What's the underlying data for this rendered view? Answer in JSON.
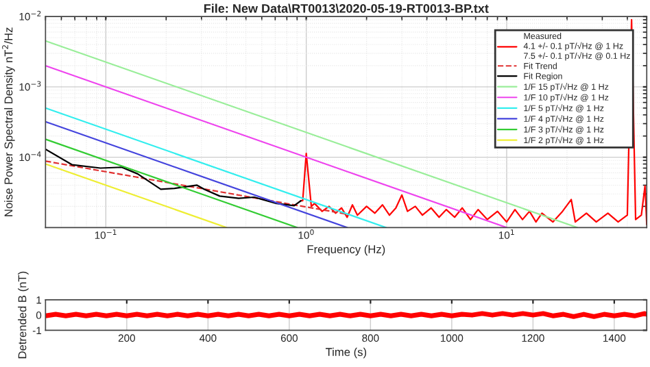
{
  "chart_data": [
    {
      "type": "line",
      "title": "File: New Data\\RT0013\\2020-05-19-RT0013-BP.txt",
      "xlabel": "Frequency (Hz)",
      "ylabel": "Noise Power Spectral Density nT$^{2}$/Hz",
      "log": "xy",
      "grid": true,
      "legend": "top right",
      "xlim": [
        0.05,
        50
      ],
      "ylim": [
        1e-05,
        0.01
      ],
      "xticks": [
        {
          "value": 0.1,
          "label": "10$^{−1}$"
        },
        {
          "value": 1,
          "label": "10$^{0}$"
        },
        {
          "value": 10,
          "label": "10$^{1}$"
        }
      ],
      "yticks": [
        {
          "value": 0.0001,
          "label": "10$^{−4}$"
        },
        {
          "value": 0.001,
          "label": "10$^{−3}$"
        },
        {
          "value": 0.01,
          "label": "10$^{−2}$"
        }
      ],
      "series": [
        {
          "name": "Measured\n4.1 +/- 0.1 pT/√Hz @ 1 Hz\n7.5 +/- 0.1 pT/√Hz @ 0.1 Hz",
          "color": "#ff0000",
          "x": [
            0.94,
            0.96,
            1.0,
            1.06,
            1.1,
            1.2,
            1.3,
            1.4,
            1.5,
            1.6,
            1.7,
            1.8,
            2.0,
            2.2,
            2.4,
            2.6,
            2.8,
            3.0,
            3.2,
            3.5,
            3.8,
            4.2,
            4.6,
            5.0,
            5.5,
            6.0,
            6.6,
            7.2,
            8.0,
            9.0,
            10,
            11,
            12,
            13,
            14,
            15,
            17,
            19,
            21,
            22,
            25,
            28,
            32,
            36,
            40,
            42,
            44,
            47,
            49,
            50
          ],
          "values": [
            2.4e-05,
            2.4e-05,
            0.000113,
            2e-05,
            2.2e-05,
            1.7e-05,
            2e-05,
            1.6e-05,
            1.9e-05,
            1.4e-05,
            2.1e-05,
            1.5e-05,
            2e-05,
            1.6e-05,
            2.1e-05,
            1.5e-05,
            1.9e-05,
            2.9e-05,
            1.7e-05,
            2e-05,
            1.5e-05,
            1.9e-05,
            1.4e-05,
            1.8e-05,
            1.4e-05,
            1.9e-05,
            1.3e-05,
            1.8e-05,
            1.3e-05,
            1.7e-05,
            1.2e-05,
            1.8e-05,
            1.3e-05,
            1.7e-05,
            1.2e-05,
            1.6e-05,
            1.2e-05,
            1.7e-05,
            2.5e-05,
            1.2e-05,
            1.6e-05,
            1.2e-05,
            1.6e-05,
            1.2e-05,
            1.5e-05,
            0.009,
            1.3e-05,
            1.5e-05,
            3.9e-05,
            1.1e-05
          ]
        },
        {
          "name": "Fit Trend",
          "color": "#e03030",
          "line_style": "dashed",
          "x": [
            0.05,
            1.6
          ],
          "values": [
            8.8e-05,
            1.55e-05
          ]
        },
        {
          "name": "Fit Region",
          "color": "#000000",
          "x": [
            0.05,
            0.068,
            0.094,
            0.12,
            0.144,
            0.188,
            0.22,
            0.285,
            0.31,
            0.37,
            0.46,
            0.55,
            0.71,
            0.87,
            0.94
          ],
          "values": [
            0.00013,
            7.8e-05,
            7e-05,
            7.2e-05,
            5.8e-05,
            3.5e-05,
            3.6e-05,
            4e-05,
            3.5e-05,
            2.8e-05,
            2.6e-05,
            2.7e-05,
            2.2e-05,
            2.05e-05,
            2.4e-05
          ]
        },
        {
          "name": "1/F 15 pT/√Hz @ 1 Hz",
          "color": "#99ee99",
          "x": [
            0.05,
            22.5
          ],
          "values": [
            0.0045,
            1e-05
          ]
        },
        {
          "name": "1/F 10 pT/√Hz @ 1 Hz",
          "color": "#ee44ee",
          "x": [
            0.05,
            10
          ],
          "values": [
            0.002,
            1e-05
          ]
        },
        {
          "name": "1/F 5 pT/√Hz @ 1 Hz",
          "color": "#33eeee",
          "x": [
            0.05,
            2.5
          ],
          "values": [
            0.0005,
            1e-05
          ]
        },
        {
          "name": "1/F 4 pT/√Hz @ 1 Hz",
          "color": "#4444dd",
          "x": [
            0.05,
            1.6
          ],
          "values": [
            0.00032,
            1e-05
          ]
        },
        {
          "name": "1/F 3 pT/√Hz @ 1 Hz",
          "color": "#33cc33",
          "x": [
            0.05,
            0.9
          ],
          "values": [
            0.00018,
            1e-05
          ]
        },
        {
          "name": "1/F 2 pT/√Hz @ 1 Hz",
          "color": "#eeee33",
          "x": [
            0.05,
            0.4
          ],
          "values": [
            8e-05,
            1e-05
          ]
        }
      ]
    },
    {
      "type": "line",
      "xlabel": "Time (s)",
      "ylabel": "Detrended B (nT)",
      "grid": "x",
      "xlim": [
        0,
        1480
      ],
      "ylim": [
        -1,
        1
      ],
      "xticks": [
        200,
        400,
        600,
        800,
        1000,
        1200,
        1400
      ],
      "yticks": [
        -1,
        0,
        1
      ],
      "series": [
        {
          "color": "#ff0000",
          "x": [
            0,
            25,
            50,
            75,
            100,
            125,
            150,
            175,
            200,
            225,
            250,
            275,
            300,
            325,
            350,
            375,
            400,
            425,
            450,
            475,
            500,
            525,
            550,
            575,
            600,
            625,
            650,
            675,
            700,
            725,
            750,
            775,
            800,
            825,
            850,
            875,
            900,
            925,
            950,
            975,
            1000,
            1025,
            1050,
            1075,
            1100,
            1125,
            1150,
            1175,
            1200,
            1225,
            1250,
            1275,
            1300,
            1325,
            1350,
            1375,
            1400,
            1425,
            1450,
            1475,
            1480
          ],
          "values": [
            -0.05,
            0.05,
            -0.05,
            0.05,
            -0.05,
            0.05,
            -0.05,
            0.05,
            -0.05,
            0.05,
            -0.05,
            0.05,
            -0.05,
            0.05,
            -0.05,
            0.05,
            -0.05,
            0.05,
            -0.05,
            0.05,
            -0.05,
            0.05,
            -0.05,
            0.05,
            -0.05,
            0.05,
            -0.05,
            0.05,
            -0.05,
            0.05,
            -0.05,
            0.05,
            -0.05,
            0.05,
            -0.05,
            0.05,
            -0.05,
            0.05,
            -0.05,
            0.05,
            -0.05,
            0.05,
            0,
            0.1,
            0,
            0.1,
            0,
            0.1,
            0,
            0.1,
            -0.05,
            0.05,
            -0.1,
            0.05,
            -0.1,
            0.05,
            -0.05,
            0.05,
            -0.05,
            0.1,
            0.05
          ]
        }
      ]
    }
  ]
}
